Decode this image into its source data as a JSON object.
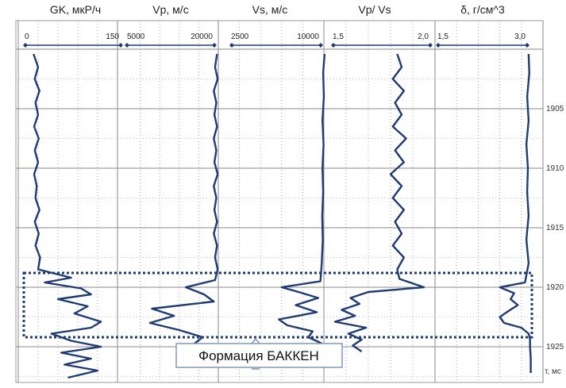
{
  "chart_data": {
    "type": "line",
    "depth_axis": {
      "unit": "т, мс",
      "range": [
        1900,
        1928
      ],
      "ticks": [
        1905,
        1910,
        1915,
        1920,
        1925
      ],
      "grid_step": 2.5
    },
    "tracks": [
      {
        "title": "GK, мкР/ч",
        "min_label": "0",
        "max_label": "150",
        "scale": [
          0,
          150
        ]
      },
      {
        "title": "Vp, м/с",
        "min_label": "5000",
        "max_label": "20000",
        "scale": [
          5000,
          20000
        ]
      },
      {
        "title": "Vs, м/с",
        "min_label": "2500",
        "max_label": "10000",
        "scale": [
          2500,
          10000
        ]
      },
      {
        "title": "Vp/ Vs",
        "min_label": "1,5",
        "max_label": "2,0",
        "scale": [
          1.5,
          2.0
        ]
      },
      {
        "title": "δ, г/см^3",
        "min_label": "1,5",
        "max_label": "3,0",
        "scale": [
          1.5,
          3.0
        ]
      }
    ],
    "series": [
      {
        "name": "GK, мкР/ч",
        "depth": [
          1900.4,
          1901.5,
          1902.5,
          1903.5,
          1904.5,
          1905.5,
          1906.5,
          1907.5,
          1908.5,
          1909.5,
          1910.5,
          1911.5,
          1912.5,
          1913.5,
          1914.5,
          1915.5,
          1916.5,
          1917.5,
          1918.5,
          1919.2,
          1919.6,
          1920.1,
          1920.6,
          1921.0,
          1921.6,
          1922.2,
          1922.9,
          1923.4,
          1923.9,
          1924.5,
          1925.0,
          1925.5,
          1926.0,
          1926.5,
          1927.0,
          1927.6
        ],
        "values": [
          23,
          30,
          25,
          32,
          26,
          30,
          24,
          31,
          25,
          30,
          24,
          28,
          26,
          32,
          25,
          31,
          26,
          33,
          30,
          80,
          40,
          95,
          110,
          60,
          105,
          85,
          125,
          110,
          50,
          80,
          125,
          65,
          110,
          70,
          120,
          75
        ]
      },
      {
        "name": "Vp, м/с",
        "depth": [
          1900.4,
          1901.5,
          1902.5,
          1903.5,
          1904.5,
          1905.5,
          1906.5,
          1907.5,
          1908.5,
          1909.5,
          1910.5,
          1911.5,
          1912.5,
          1913.5,
          1914.5,
          1915.5,
          1916.5,
          1917.5,
          1918.5,
          1919.4,
          1920.0,
          1920.6,
          1921.2,
          1921.8,
          1922.4,
          1923.0,
          1923.6,
          1924.2,
          1924.8,
          1925.4,
          1926.0
        ],
        "values": [
          19800,
          19500,
          19900,
          19300,
          19700,
          19400,
          19800,
          19300,
          19700,
          19400,
          19900,
          19300,
          19700,
          19400,
          19800,
          19300,
          19800,
          19500,
          19900,
          19500,
          15000,
          17800,
          19300,
          9800,
          13200,
          9500,
          14000,
          17600,
          16200,
          17800,
          17000
        ]
      },
      {
        "name": "Vs, м/с",
        "depth": [
          1900.4,
          1902.0,
          1904.0,
          1906.0,
          1908.0,
          1910.0,
          1912.0,
          1914.0,
          1916.0,
          1918.0,
          1919.5,
          1920.0,
          1920.4,
          1920.9,
          1921.5,
          1922.1,
          1922.7,
          1923.2,
          1923.7,
          1924.2,
          1924.7,
          1925.2,
          1925.8
        ],
        "values": [
          10050,
          9950,
          10000,
          9900,
          9980,
          9900,
          9950,
          9880,
          9920,
          9850,
          9750,
          7000,
          8200,
          9600,
          8000,
          9500,
          6800,
          7400,
          9200,
          8900,
          9800,
          9200,
          9900
        ]
      },
      {
        "name": "Vp/ Vs",
        "depth": [
          1900.4,
          1901.5,
          1902.5,
          1903.5,
          1904.5,
          1905.5,
          1906.5,
          1907.5,
          1908.5,
          1909.5,
          1910.5,
          1911.5,
          1912.5,
          1913.5,
          1914.5,
          1915.5,
          1916.5,
          1917.5,
          1918.5,
          1919.3,
          1920.0,
          1920.4,
          1920.9,
          1921.4,
          1921.9,
          1922.4,
          1922.9,
          1923.4,
          1923.9,
          1924.4,
          1924.9,
          1925.4
        ],
        "values": [
          1.83,
          1.85,
          1.81,
          1.86,
          1.82,
          1.85,
          1.81,
          1.87,
          1.82,
          1.86,
          1.8,
          1.85,
          1.81,
          1.86,
          1.82,
          1.85,
          1.81,
          1.86,
          1.83,
          1.84,
          1.95,
          1.7,
          1.62,
          1.66,
          1.58,
          1.64,
          1.55,
          1.69,
          1.61,
          1.67,
          1.63,
          1.67
        ]
      },
      {
        "name": "δ, г/см^3",
        "depth": [
          1900.4,
          1902.0,
          1904.0,
          1906.0,
          1908.0,
          1910.0,
          1912.0,
          1914.0,
          1916.0,
          1918.0,
          1919.6,
          1920.0,
          1920.5,
          1921.0,
          1921.5,
          1922.0,
          1922.5,
          1923.0,
          1923.4,
          1923.9,
          1924.4,
          1925.0,
          1926.0,
          1927.2
        ],
        "values": [
          2.8,
          2.81,
          2.78,
          2.8,
          2.77,
          2.79,
          2.78,
          2.8,
          2.77,
          2.8,
          2.75,
          2.4,
          2.6,
          2.55,
          2.65,
          2.52,
          2.4,
          2.46,
          2.7,
          2.8,
          2.82,
          2.82,
          2.83,
          2.83
        ]
      }
    ],
    "annotation": {
      "label": "Формация БАККЕН",
      "depth_range": [
        1918.8,
        1924.2
      ]
    },
    "grid": true,
    "color": "#1f3b73"
  }
}
